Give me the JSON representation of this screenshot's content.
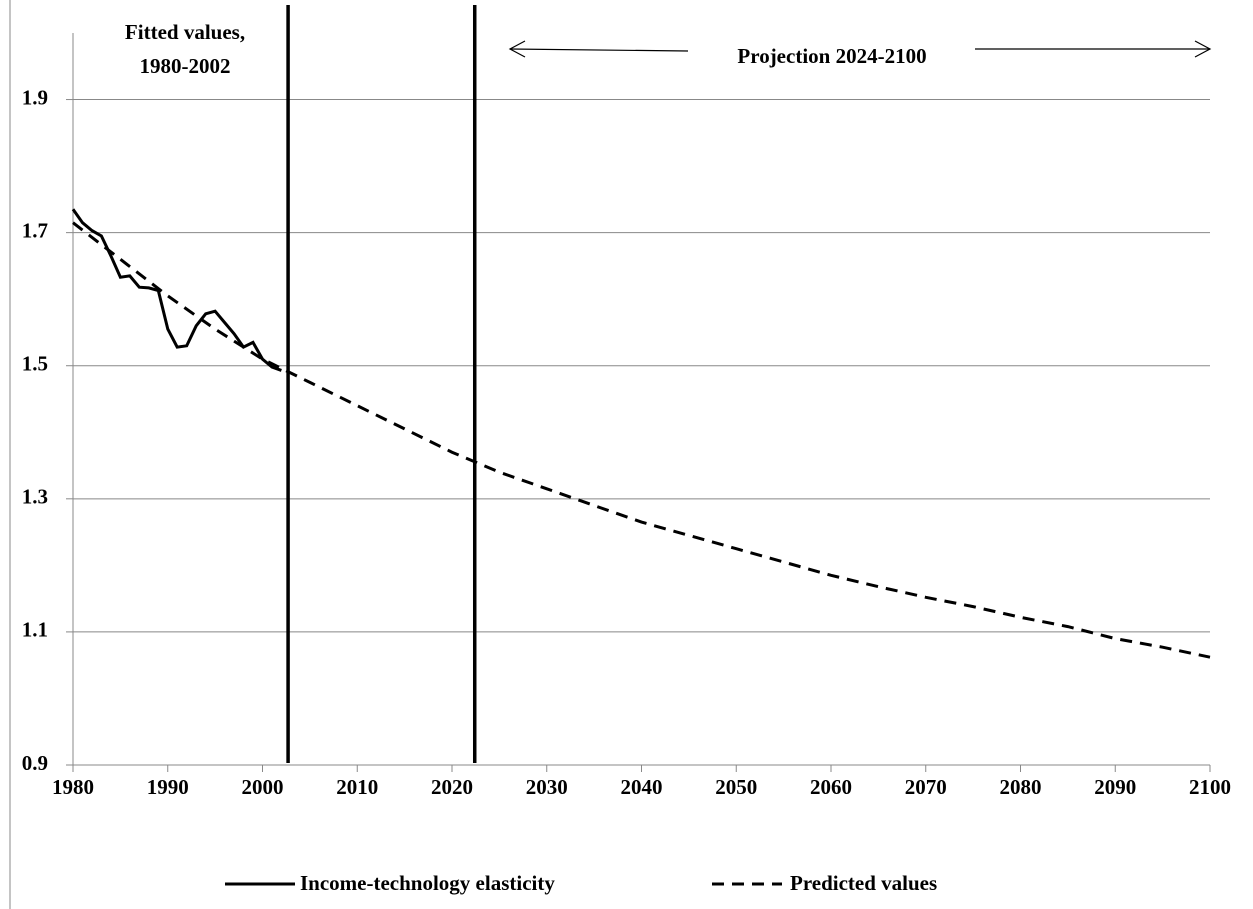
{
  "chart_data": {
    "type": "line",
    "annotations": {
      "fitted": [
        "Fitted values,",
        "1980-2002"
      ],
      "projection": "Projection 2024-2100"
    },
    "vlines": [
      2002.7,
      2022.4
    ],
    "series": [
      {
        "name": "Income-technology elasticity",
        "color": "#000000",
        "dash": false,
        "x": [
          1980,
          1981,
          1982,
          1983,
          1984,
          1985,
          1986,
          1987,
          1988,
          1989,
          1990,
          1991,
          1992,
          1993,
          1994,
          1995,
          1996,
          1997,
          1998,
          1999,
          2000,
          2001,
          2002
        ],
        "values": [
          1.735,
          1.715,
          1.703,
          1.695,
          1.665,
          1.633,
          1.635,
          1.618,
          1.617,
          1.613,
          1.555,
          1.528,
          1.53,
          1.56,
          1.578,
          1.582,
          1.565,
          1.548,
          1.528,
          1.535,
          1.51,
          1.498,
          1.493
        ]
      },
      {
        "name": "Predicted values",
        "color": "#000000",
        "dash": true,
        "x": [
          1980,
          1985,
          1990,
          1995,
          2000,
          2005,
          2010,
          2015,
          2020,
          2025,
          2030,
          2035,
          2040,
          2045,
          2050,
          2055,
          2060,
          2065,
          2070,
          2075,
          2080,
          2085,
          2090,
          2095,
          2100
        ],
        "values": [
          1.715,
          1.66,
          1.605,
          1.555,
          1.51,
          1.475,
          1.44,
          1.405,
          1.37,
          1.34,
          1.315,
          1.29,
          1.265,
          1.245,
          1.225,
          1.205,
          1.185,
          1.168,
          1.152,
          1.138,
          1.122,
          1.108,
          1.09,
          1.077,
          1.062
        ]
      }
    ],
    "xlim": [
      1980,
      2100
    ],
    "xticks": [
      1980,
      1990,
      2000,
      2010,
      2020,
      2030,
      2040,
      2050,
      2060,
      2070,
      2080,
      2090,
      2100
    ],
    "ylim": [
      0.9,
      2.0
    ],
    "yticks": [
      0.9,
      1.1,
      1.3,
      1.5,
      1.7,
      1.9
    ],
    "grid": true
  }
}
